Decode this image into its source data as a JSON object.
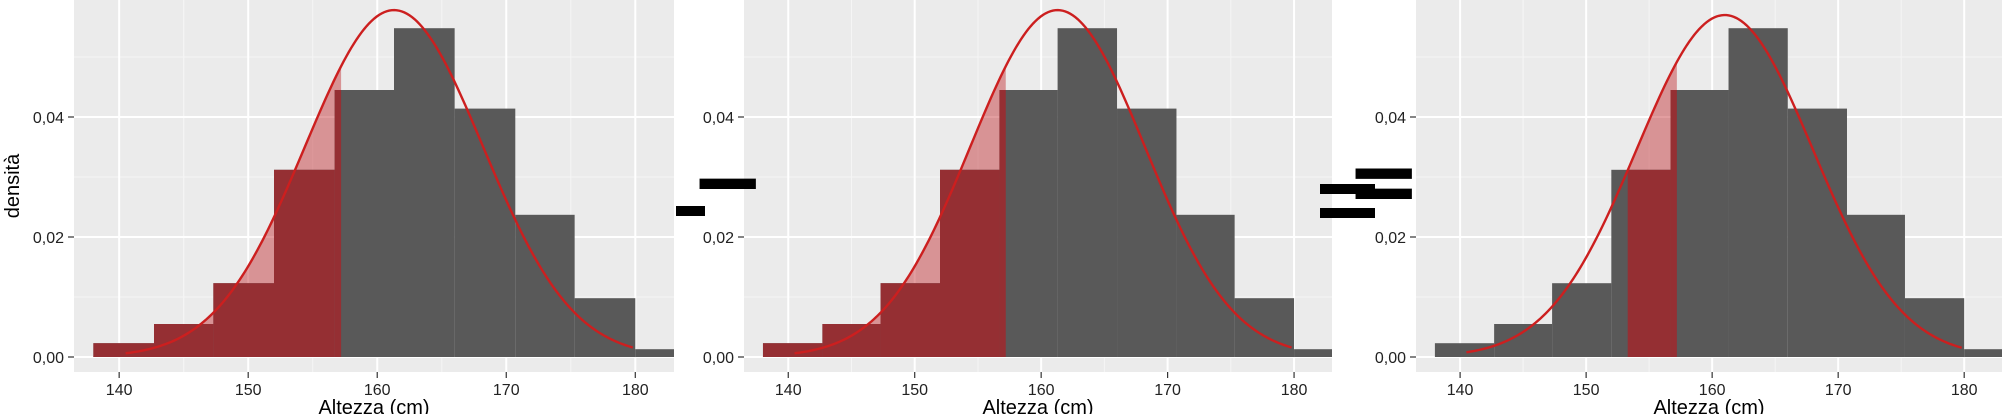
{
  "chart_data": [
    {
      "type": "bar",
      "xlabel": "Altezza (cm)",
      "ylabel": "densità",
      "xlim": [
        136.5,
        183
      ],
      "ylim": [
        -0.0025,
        0.0595
      ],
      "x_ticks": [
        140,
        150,
        160,
        170,
        180
      ],
      "x_tick_labels": [
        "140",
        "150",
        "160",
        "170",
        "180"
      ],
      "y_ticks": [
        0,
        0.02,
        0.04
      ],
      "y_tick_labels": [
        "0,00",
        "0,02",
        "0,04"
      ],
      "grid": true,
      "bins": [
        {
          "x0": 138.0,
          "x1": 142.7,
          "density": 0.0023
        },
        {
          "x0": 142.7,
          "x1": 147.3,
          "density": 0.0055
        },
        {
          "x0": 147.3,
          "x1": 152.0,
          "density": 0.0123
        },
        {
          "x0": 152.0,
          "x1": 156.7,
          "density": 0.0312
        },
        {
          "x0": 156.7,
          "x1": 161.3,
          "density": 0.0445
        },
        {
          "x0": 161.3,
          "x1": 166.0,
          "density": 0.0548
        },
        {
          "x0": 166.0,
          "x1": 170.7,
          "density": 0.0414
        },
        {
          "x0": 170.7,
          "x1": 175.3,
          "density": 0.0237
        },
        {
          "x0": 175.3,
          "x1": 180.0,
          "density": 0.0098
        },
        {
          "x0": 180.0,
          "x1": 184.7,
          "density": 0.0013
        }
      ],
      "normal_curve": {
        "mean": 161.3,
        "sd": 6.9,
        "x_range": [
          140.5,
          179.8
        ]
      },
      "shaded_range": [
        138.0,
        157.2
      ]
    },
    {
      "type": "bar",
      "xlabel": "Altezza (cm)",
      "ylabel": "",
      "xlim": [
        136.5,
        183
      ],
      "ylim": [
        -0.0025,
        0.0595
      ],
      "x_ticks": [
        140,
        150,
        160,
        170,
        180
      ],
      "x_tick_labels": [
        "140",
        "150",
        "160",
        "170",
        "180"
      ],
      "y_ticks": [
        0,
        0.02,
        0.04
      ],
      "y_tick_labels": [
        "0,00",
        "0,02",
        "0,04"
      ],
      "grid": true,
      "bins": [
        {
          "x0": 138.0,
          "x1": 142.7,
          "density": 0.0023
        },
        {
          "x0": 142.7,
          "x1": 147.3,
          "density": 0.0055
        },
        {
          "x0": 147.3,
          "x1": 152.0,
          "density": 0.0123
        },
        {
          "x0": 152.0,
          "x1": 156.7,
          "density": 0.0312
        },
        {
          "x0": 156.7,
          "x1": 161.3,
          "density": 0.0445
        },
        {
          "x0": 161.3,
          "x1": 166.0,
          "density": 0.0548
        },
        {
          "x0": 166.0,
          "x1": 170.7,
          "density": 0.0414
        },
        {
          "x0": 170.7,
          "x1": 175.3,
          "density": 0.0237
        },
        {
          "x0": 175.3,
          "x1": 180.0,
          "density": 0.0098
        },
        {
          "x0": 180.0,
          "x1": 184.7,
          "density": 0.0013
        }
      ],
      "normal_curve": {
        "mean": 161.3,
        "sd": 6.9,
        "x_range": [
          140.5,
          179.8
        ]
      },
      "shaded_range": [
        138.0,
        157.2
      ]
    },
    {
      "type": "bar",
      "xlabel": "Altezza (cm)",
      "ylabel": "",
      "xlim": [
        136.5,
        183
      ],
      "ylim": [
        -0.0025,
        0.0595
      ],
      "x_ticks": [
        140,
        150,
        160,
        170,
        180
      ],
      "x_tick_labels": [
        "140",
        "150",
        "160",
        "170",
        "180"
      ],
      "y_ticks": [
        0,
        0.02,
        0.04
      ],
      "y_tick_labels": [
        "0,00",
        "0,02",
        "0,04"
      ],
      "grid": true,
      "bins": [
        {
          "x0": 138.0,
          "x1": 142.7,
          "density": 0.0023
        },
        {
          "x0": 142.7,
          "x1": 147.3,
          "density": 0.0055
        },
        {
          "x0": 147.3,
          "x1": 152.0,
          "density": 0.0123
        },
        {
          "x0": 152.0,
          "x1": 156.7,
          "density": 0.0312
        },
        {
          "x0": 156.7,
          "x1": 161.3,
          "density": 0.0445
        },
        {
          "x0": 161.3,
          "x1": 166.0,
          "density": 0.0548
        },
        {
          "x0": 166.0,
          "x1": 170.7,
          "density": 0.0414
        },
        {
          "x0": 170.7,
          "x1": 175.3,
          "density": 0.0237
        },
        {
          "x0": 175.3,
          "x1": 180.0,
          "density": 0.0098
        },
        {
          "x0": 180.0,
          "x1": 184.7,
          "density": 0.0013
        }
      ],
      "normal_curve": {
        "mean": 161.0,
        "sd": 7.0,
        "x_range": [
          140.5,
          179.8
        ]
      },
      "shaded_range": [
        153.3,
        157.2
      ]
    }
  ],
  "operators": [
    "−",
    "="
  ],
  "colors": {
    "panel_bg": "#ebebeb",
    "grid_major": "#ffffff",
    "grid_minor": "#f5f5f5",
    "bar_fill": "#595959",
    "shade_fill": "#c0282d",
    "shade_over_bar": "#9b2a2f",
    "curve": "#cc1f1f",
    "axis_text": "#222222"
  }
}
